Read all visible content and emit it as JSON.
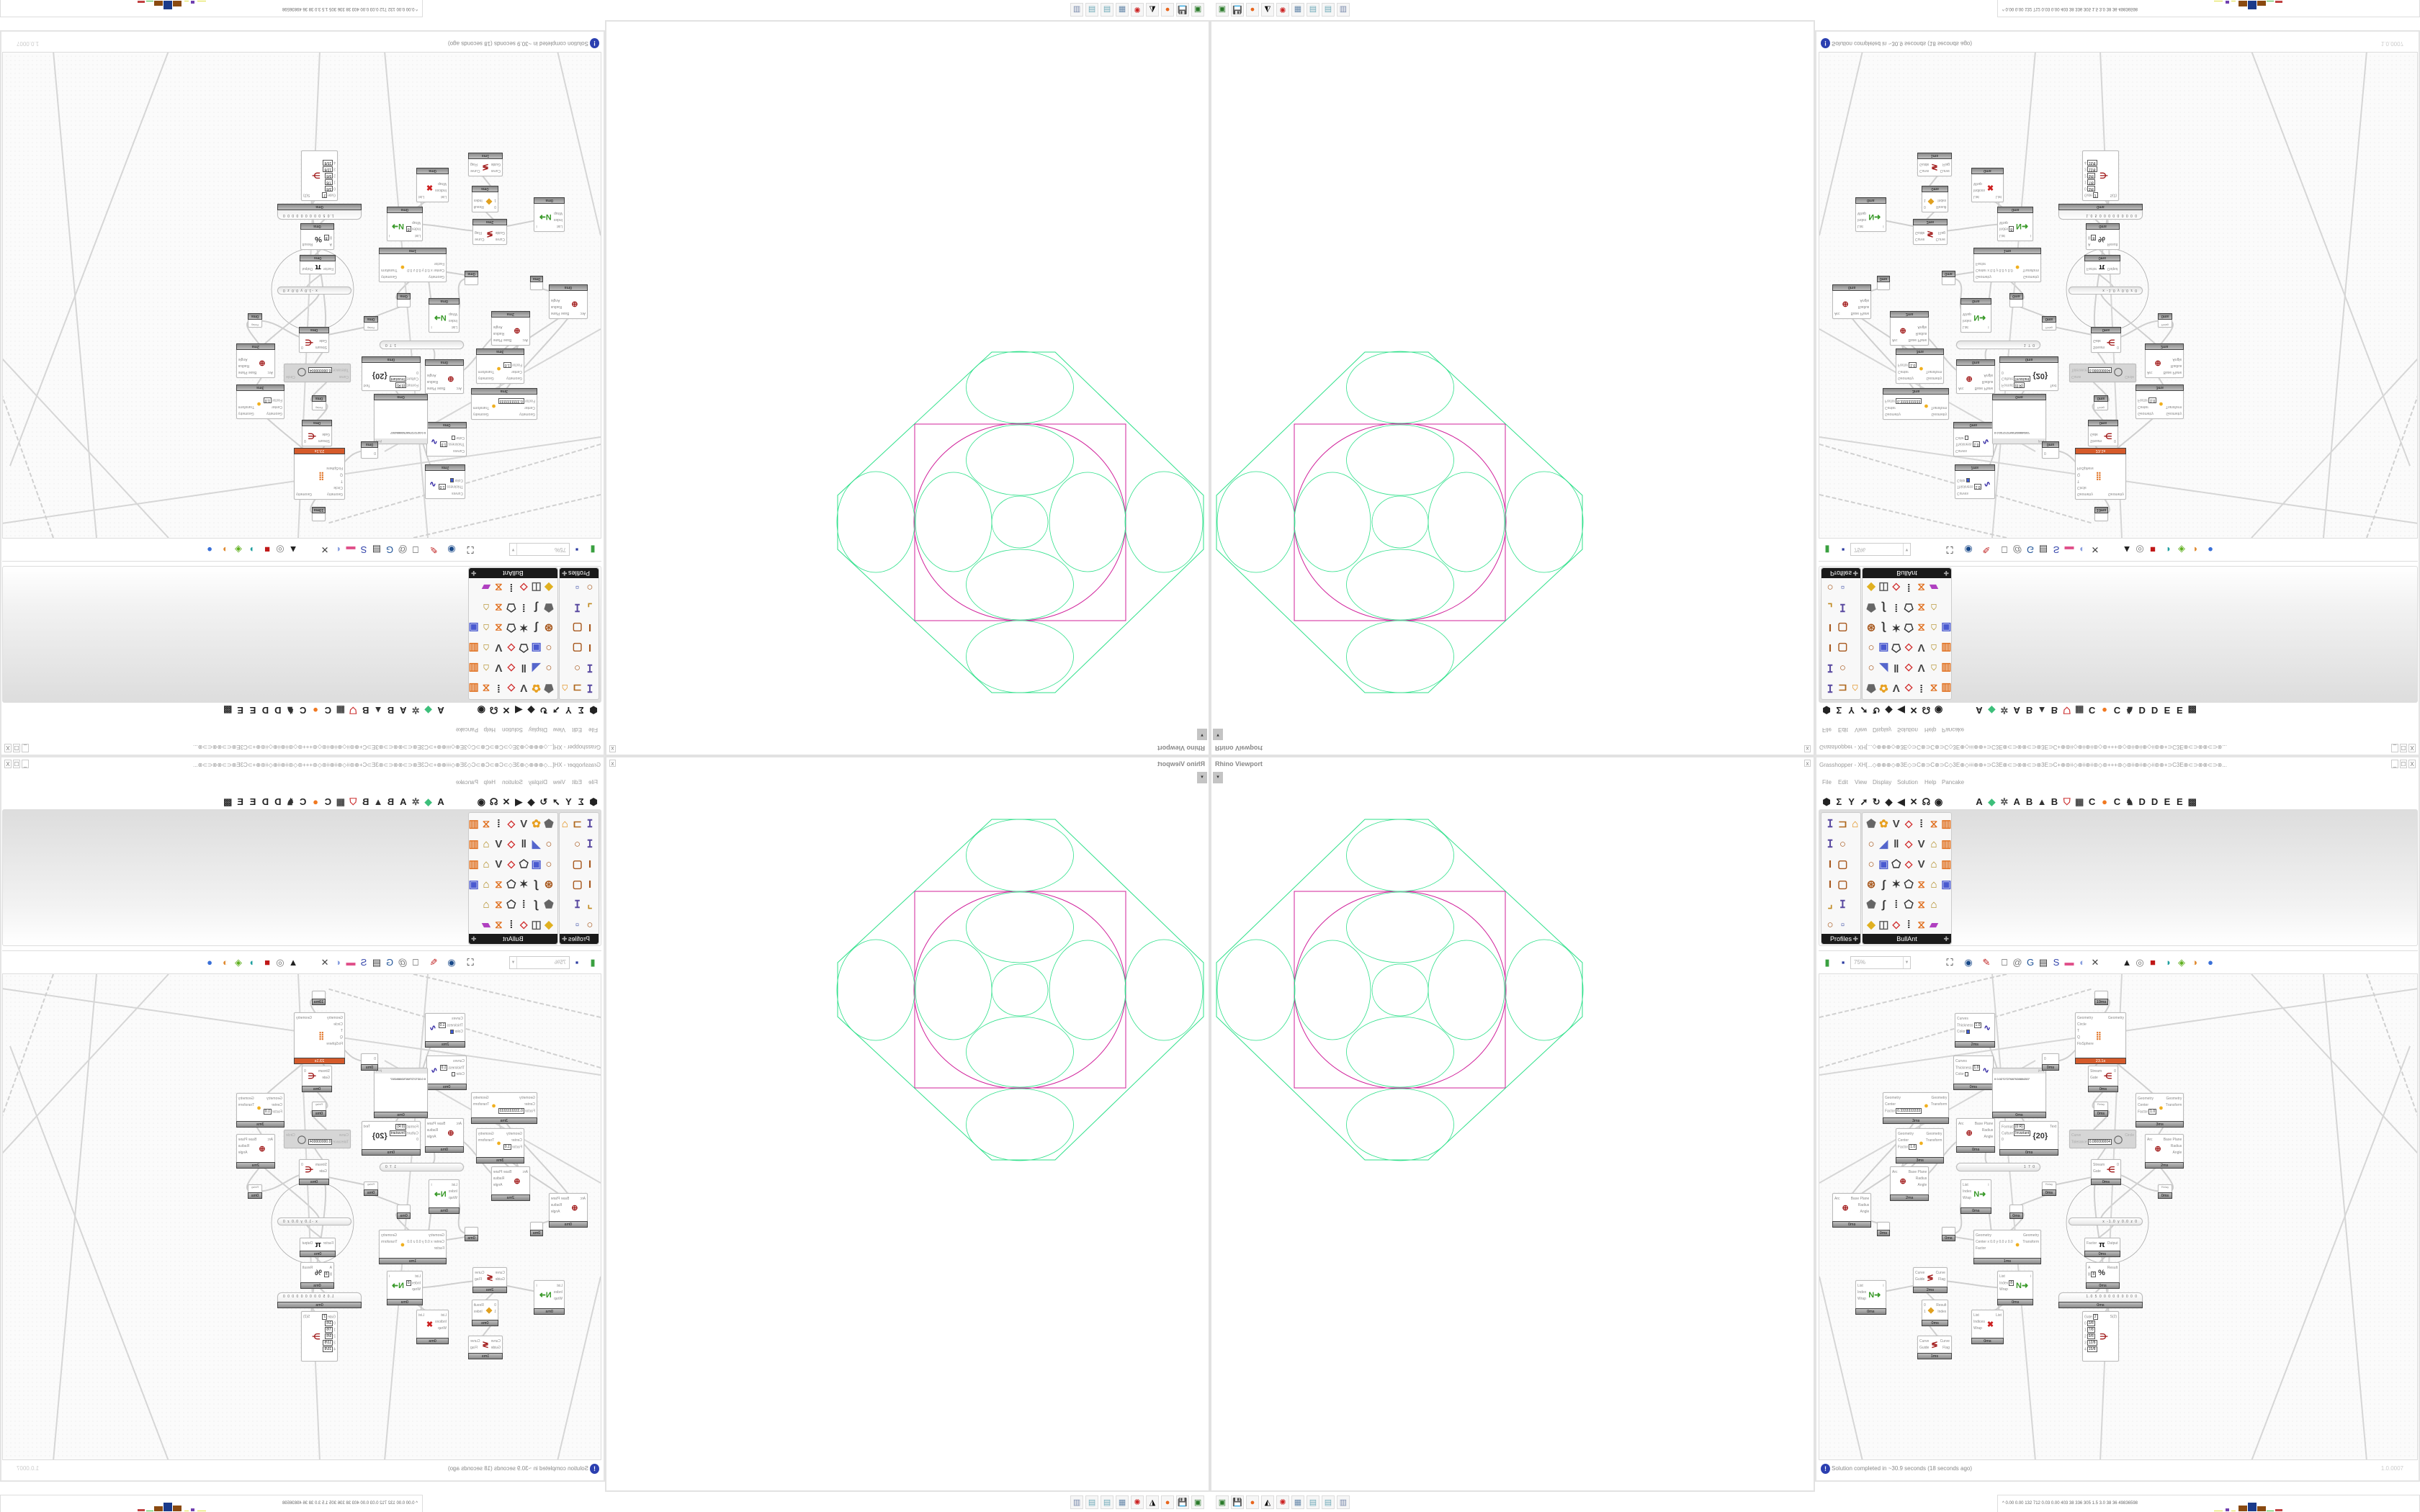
{
  "viewport": {
    "title": "Rhino Viewport",
    "close": "x",
    "dropdown": "▾"
  },
  "taskbar": {
    "icons": [
      {
        "name": "terminal-icon",
        "glyph": "▣",
        "color": "#2a7a2a"
      },
      {
        "name": "floppy-64-icon",
        "glyph": "💾",
        "color": "#3333aa"
      },
      {
        "name": "firefox-icon",
        "glyph": "●",
        "color": "#e8651c"
      },
      {
        "name": "inkscape-icon",
        "glyph": "◭",
        "color": "#000000"
      },
      {
        "name": "red-app-icon",
        "glyph": "✺",
        "color": "#cc2222"
      },
      {
        "name": "calculator-icon",
        "glyph": "▦",
        "color": "#6688aa"
      },
      {
        "name": "notepad-icon",
        "glyph": "▤",
        "color": "#6fa9b8"
      },
      {
        "name": "notepad-icon",
        "glyph": "▤",
        "color": "#6fa9b8"
      },
      {
        "name": "document-icon",
        "glyph": "▥",
        "color": "#7788aa"
      }
    ]
  },
  "gh": {
    "title": "Grasshopper - XH[...◇⊕⊕⊕◇⊕3E◇⊃C⊗⊃C⊗⊃C◇3E⊕◇⟊⟊⟊⊕⊕+⊃C3E⊗⊂⊃⊗⊗⊂⊃⊗3E⊃C+⊕⊛⟊⟊◇⊕⟊⟊⊕⟊⟊⊛◇⊛+++⊛◇⊛⟊⟊⊕⟊⟊⊕◇⟊⟊⊛⊕+⊃C3E⊗⊂⊃⊗⊗⊂⊃⊗...",
    "window_buttons": [
      "_",
      "☐",
      "X"
    ],
    "menu": [
      "File",
      "Edit",
      "View",
      "Display",
      "Solution",
      "Help",
      "Pancake"
    ],
    "tab_icons": [
      "⬢",
      "Σ",
      "Y",
      "➚",
      "↻",
      "◆",
      "◀",
      "✕",
      "☊",
      "◉"
    ],
    "tab_letters": [
      {
        "label": "A"
      },
      {
        "label": "◆",
        "icon": "leaf-icon",
        "color": "#3cbf7a"
      },
      {
        "label": "✲",
        "icon": "puzzle-icon",
        "color": "#555555"
      },
      {
        "label": "A"
      },
      {
        "label": "B"
      },
      {
        "label": "▲",
        "icon": "mountain-icon",
        "color": "#333333"
      },
      {
        "label": "B"
      },
      {
        "label": "⛉",
        "icon": "shield-icon",
        "color": "#cc3333"
      },
      {
        "label": "▦",
        "icon": "grid-icon",
        "color": "#444444"
      },
      {
        "label": "C"
      },
      {
        "label": "●",
        "icon": "orange-dot-icon",
        "color": "#f07820"
      },
      {
        "label": "C"
      },
      {
        "label": "♞",
        "icon": "rooster-icon",
        "color": "#333333"
      },
      {
        "label": "D"
      },
      {
        "label": "D"
      },
      {
        "label": "E"
      },
      {
        "label": "E"
      },
      {
        "label": "▩",
        "icon": "layout-icon",
        "color": "#333333"
      }
    ],
    "palettes": [
      {
        "name": "Profiles",
        "expand": "✚",
        "rows": [
          [
            "i-profile",
            "c-channel",
            "hat"
          ],
          [
            "i-profile",
            "ring"
          ],
          [
            "ibeam",
            "rect"
          ],
          [
            "ibeam",
            "rect"
          ],
          [
            "angle",
            "i-profile"
          ],
          [
            "ring",
            "points"
          ]
        ]
      },
      {
        "name": "BullAnt",
        "expand": "✚",
        "rows": [
          [
            "solid",
            "flower",
            "vee",
            "kite",
            "dims",
            "frame",
            "chart"
          ],
          [
            "ring",
            "plane",
            "bars",
            "kite",
            "vee",
            "lock",
            "chart"
          ],
          [
            "ring",
            "box",
            "poly",
            "kite",
            "vee",
            "lock",
            "chart"
          ],
          [
            "sphere",
            "curve",
            "star",
            "poly",
            "frame",
            "lock",
            "box"
          ],
          [
            "solid",
            "curve",
            "dims",
            "poly",
            "frame",
            "lock"
          ],
          [
            "gem",
            "tile",
            "kite",
            "dims",
            "frame",
            "rainbow"
          ]
        ]
      }
    ],
    "toolbar": {
      "zoom": "75%",
      "icons": [
        "file-new-icon",
        "save-icon",
        "zoom-extents-icon",
        "preview-eye-icon",
        "sketch-pen-icon",
        "bracket-icon",
        "at-sign-icon",
        "gha-icon",
        "panel-icon",
        "search-s-icon",
        "package-icon",
        "bulb-icon",
        "wires-icon",
        "bell-icon",
        "ring-icon",
        "red-box-icon",
        "teal-shape-icon",
        "green-shape-icon",
        "half-sphere-icon",
        "blue-sphere-icon"
      ]
    },
    "components": [
      {
        "kind": "node",
        "inputs": [
          {
            "label": "Curves"
          },
          {
            "label": "Thickness",
            "value": "1.0"
          },
          {
            "label": "Color",
            "swatch": "#3a5ad8"
          }
        ],
        "outputs": [],
        "icon": "∿",
        "icon_color": "#2b20a0",
        "time": "2ms"
      },
      {
        "kind": "node",
        "inputs": [
          {
            "label": "Curves"
          },
          {
            "label": "Thickness",
            "value": "1.0"
          },
          {
            "label": "Color",
            "swatch": "#ffffff"
          }
        ],
        "outputs": [],
        "icon": "∿",
        "icon_color": "#2b20a0",
        "time": "0ms"
      },
      {
        "kind": "node",
        "inputs": [
          {
            "label": "Geometry"
          },
          {
            "label": "Center"
          },
          {
            "label": "Factor",
            "value": "0.3333333333"
          }
        ],
        "outputs": [
          {
            "label": "Geometry"
          },
          {
            "label": "Transform"
          }
        ],
        "icon": "●",
        "icon_color": "#f0b020",
        "time": "3ms"
      },
      {
        "kind": "node",
        "inputs": [
          {
            "label": "Geometry"
          },
          {
            "label": "Center"
          },
          {
            "label": "Factor",
            "value": "1.0"
          }
        ],
        "outputs": [
          {
            "label": "Geometry"
          },
          {
            "label": "Transform"
          }
        ],
        "icon": "●",
        "icon_color": "#f0b020",
        "time": "3ms"
      },
      {
        "kind": "node",
        "inputs": [
          {
            "label": "Arc"
          }
        ],
        "outputs": [
          {
            "label": "Base Plane"
          },
          {
            "label": "Radius"
          },
          {
            "label": "Angle"
          }
        ],
        "icon": "⊕",
        "icon_color": "#a01818",
        "time": "2ms"
      },
      {
        "kind": "node",
        "inputs": [
          {
            "label": "Arc"
          }
        ],
        "outputs": [
          {
            "label": "Base Plane"
          },
          {
            "label": "Radius"
          },
          {
            "label": "Angle"
          }
        ],
        "icon": "⊕",
        "icon_color": "#a01818",
        "time": "0ms"
      },
      {
        "kind": "relay",
        "time": "0ms"
      },
      {
        "kind": "panel",
        "header": "{0;0}",
        "text": "0  0.0272727687028804307",
        "time": "0ms"
      },
      {
        "kind": "node",
        "inputs": [
          {
            "label": "Arc"
          }
        ],
        "outputs": [
          {
            "label": "Base Plane"
          },
          {
            "label": "Radius"
          },
          {
            "label": "Angle"
          }
        ],
        "icon": "⊕",
        "icon_color": "#a01818",
        "time": "0ms"
      },
      {
        "kind": "node",
        "inputs": [
          {
            "label": "Format",
            "value": "{0:R}"
          },
          {
            "label": "Culture",
            "value": "Invariant"
          },
          {
            "label": "0"
          }
        ],
        "outputs": [
          {
            "label": "Text"
          }
        ],
        "icon": "{20}",
        "icon_color": "#333333",
        "time": "0ms"
      },
      {
        "kind": "node",
        "inputs": [
          {
            "label": "0"
          }
        ],
        "outputs": [],
        "icon": "",
        "time": "0ms"
      },
      {
        "kind": "node",
        "state": "err",
        "inputs": [
          {
            "label": "Geometry"
          },
          {
            "label": "Circle"
          },
          {
            "label": "T"
          },
          {
            "label": "Q"
          },
          {
            "label": "FixSphere"
          }
        ],
        "outputs": [
          {
            "label": "Geometry"
          }
        ],
        "icon": "⣿",
        "icon_color": "#e07020",
        "time": "23.1s"
      },
      {
        "kind": "node",
        "inputs": [
          {
            "label": "Stream"
          },
          {
            "label": "Gate"
          }
        ],
        "outputs": [
          {
            "label": "0"
          }
        ],
        "icon": "⋲",
        "icon_color": "#a01818",
        "time": "0ms"
      },
      {
        "kind": "relay",
        "label": "Relay",
        "time": "0ms"
      },
      {
        "kind": "node",
        "state": "dis",
        "inputs": [
          {
            "label": "Curve"
          },
          {
            "label": "Tolerance",
            "value": "0.000000004"
          }
        ],
        "outputs": [
          {
            "label": "Circle"
          }
        ],
        "icon": "◯",
        "icon_color": "#666666"
      },
      {
        "kind": "node",
        "inputs": [
          {
            "label": "Geometry"
          },
          {
            "label": "Center"
          },
          {
            "label": "Factor",
            "value": "1.0"
          }
        ],
        "outputs": [
          {
            "label": "Geometry"
          },
          {
            "label": "Transform"
          }
        ],
        "icon": "●",
        "icon_color": "#f0b020",
        "time": "3ms"
      },
      {
        "kind": "node",
        "inputs": [
          {
            "label": "Arc"
          }
        ],
        "outputs": [
          {
            "label": "Base Plane"
          },
          {
            "label": "Radius"
          },
          {
            "label": "Angle"
          }
        ],
        "icon": "⊕",
        "icon_color": "#a01818",
        "time": "2ms"
      },
      {
        "kind": "node",
        "inputs": [
          {
            "label": "Stream"
          },
          {
            "label": "Gate"
          }
        ],
        "outputs": [
          {
            "label": "0"
          }
        ],
        "icon": "⋲",
        "icon_color": "#a01818",
        "time": "0ms"
      },
      {
        "kind": "relay",
        "label": "Relay",
        "time": "0ms"
      },
      {
        "kind": "relay",
        "label": "Relay",
        "time": "0ms"
      },
      {
        "kind": "slider",
        "value": "1 7 0"
      },
      {
        "kind": "node",
        "inputs": [
          {
            "label": "List"
          },
          {
            "label": "Index"
          },
          {
            "label": "Wrap"
          }
        ],
        "outputs": [
          {
            "label": "i"
          }
        ],
        "icon": "N➜",
        "icon_color": "#3a9a2a",
        "time": "0ms"
      },
      {
        "kind": "relay",
        "time": "0ms"
      },
      {
        "kind": "relay",
        "time": "0ms"
      },
      {
        "kind": "slider",
        "value": "x -1.0  y 0.0  z 0"
      },
      {
        "kind": "node",
        "inputs": [
          {
            "label": "Factor"
          }
        ],
        "outputs": [
          {
            "label": "Output"
          }
        ],
        "icon": "π",
        "icon_color": "#111111",
        "time": "0ms"
      },
      {
        "kind": "node",
        "inputs": [
          {
            "label": "Geometry"
          },
          {
            "label": "Center x 0.0 y 0.0 z 0.0"
          },
          {
            "label": "Factor"
          }
        ],
        "outputs": [
          {
            "label": "Geometry"
          },
          {
            "label": "Transform"
          }
        ],
        "icon": "●",
        "icon_color": "#f0b020",
        "time": "1ms"
      },
      {
        "kind": "node",
        "inputs": [
          {
            "label": "A"
          },
          {
            "label": "B",
            "value": "8"
          }
        ],
        "outputs": [
          {
            "label": "Result"
          }
        ],
        "icon": "%",
        "icon_color": "#333333",
        "time": "0ms"
      },
      {
        "kind": "slider",
        "value": "1.0 5 0 0 0 0 0 0 0 0 0",
        "time": "0ms"
      },
      {
        "kind": "node",
        "inputs": [
          {
            "label": "Gate",
            "value": "2"
          },
          {
            "label": "0",
            "value": "3/8"
          },
          {
            "label": "1",
            "value": "7/8"
          },
          {
            "label": "2",
            "value": "9/8"
          },
          {
            "label": "3",
            "value": "12/8"
          },
          {
            "label": "4",
            "value": "15/8"
          }
        ],
        "outputs": [
          {
            "label": "S(2)"
          }
        ],
        "icon": "⋺",
        "icon_color": "#a01818"
      },
      {
        "kind": "node",
        "inputs": [
          {
            "label": "Curve"
          },
          {
            "label": "Guide"
          }
        ],
        "outputs": [
          {
            "label": "Curve"
          },
          {
            "label": "Flag"
          }
        ],
        "icon": "≶",
        "icon_color": "#a01818",
        "time": "2ms"
      },
      {
        "kind": "node",
        "inputs": [
          {
            "label": "List"
          },
          {
            "label": "Index",
            "value": "8"
          },
          {
            "label": "Wrap"
          }
        ],
        "outputs": [
          {
            "label": "i"
          }
        ],
        "icon": "N➜",
        "icon_color": "#3a9a2a",
        "time": "0ms"
      },
      {
        "kind": "node",
        "inputs": [
          {
            "label": "List"
          },
          {
            "label": "Index"
          },
          {
            "label": "Wrap"
          }
        ],
        "outputs": [
          {
            "label": "i"
          }
        ],
        "icon": "N➜",
        "icon_color": "#3a9a2a",
        "time": "0ms"
      },
      {
        "kind": "node",
        "inputs": [
          {
            "label": "0"
          },
          {
            "label": "1"
          }
        ],
        "outputs": [
          {
            "label": "Result"
          },
          {
            "label": "Index"
          }
        ],
        "icon": "◆",
        "icon_color": "#e0a020",
        "time": "0ms"
      },
      {
        "kind": "node",
        "inputs": [
          {
            "label": "List"
          },
          {
            "label": "Indices"
          },
          {
            "label": "Wrap"
          }
        ],
        "outputs": [
          {
            "label": "List"
          }
        ],
        "icon": "✖",
        "icon_color": "#cc2020",
        "time": "0ms"
      },
      {
        "kind": "node",
        "inputs": [
          {
            "label": "Curve"
          },
          {
            "label": "Guide"
          }
        ],
        "outputs": [
          {
            "label": "Curve"
          },
          {
            "label": "Flag"
          }
        ],
        "icon": "≶",
        "icon_color": "#a01818",
        "time": "1ms"
      },
      {
        "kind": "relay",
        "time": "19ms"
      }
    ],
    "status": {
      "icon": "!",
      "text": "Solution completed in ~30.9 seconds (18 seconds ago)",
      "version": "1.0.0007"
    }
  },
  "stats": {
    "caret": "^",
    "values": "0.00 0.00 132 712 0.03 0.00 403 38 336 305 1.5 3.0 38 36 49836598"
  },
  "colors": {
    "curve_green": "#2ee08a",
    "square_magenta": "#d0209a",
    "component_error": "#d55a2a",
    "status_blue": "#2b3fb0"
  }
}
